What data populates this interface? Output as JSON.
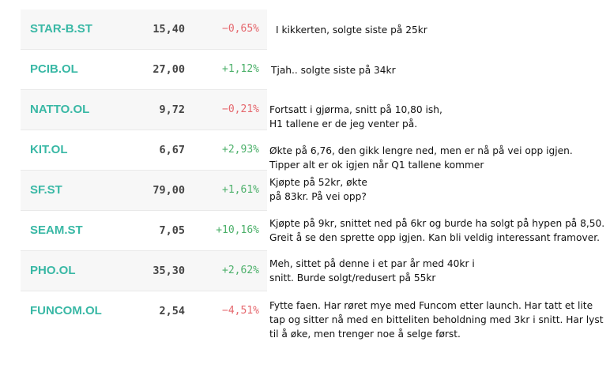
{
  "rows": [
    {
      "ticker": "STAR-B.ST",
      "price": "15,40",
      "change": "−0,65%",
      "direction": "neg",
      "note": [
        "I kikkerten, solgte siste på 25kr"
      ]
    },
    {
      "ticker": "PCIB.OL",
      "price": "27,00",
      "change": "+1,12%",
      "direction": "pos",
      "note": [
        "Tjah.. solgte siste på 34kr"
      ]
    },
    {
      "ticker": "NATTO.OL",
      "price": "9,72",
      "change": "−0,21%",
      "direction": "neg",
      "note": [
        "Fortsatt i gjørma, snitt på 10,80 ish,",
        "H1 tallene er de jeg venter på."
      ]
    },
    {
      "ticker": "KIT.OL",
      "price": "6,67",
      "change": "+2,93%",
      "direction": "pos",
      "note": [
        "Økte på 6,76, den gikk lengre ned, men er nå på vei opp igjen.",
        "Tipper alt er ok igjen når Q1 tallene kommer"
      ]
    },
    {
      "ticker": "SF.ST",
      "price": "79,00",
      "change": "+1,61%",
      "direction": "pos",
      "note": [
        "Kjøpte på 52kr, økte",
        "på 83kr. På vei opp?"
      ]
    },
    {
      "ticker": "SEAM.ST",
      "price": "7,05",
      "change": "+10,16%",
      "direction": "pos",
      "note": [
        "Kjøpte på 9kr, snittet ned på 6kr og burde ha solgt på hypen på 8,50.",
        "Greit å se den sprette opp igjen. Kan bli veldig interessant framover."
      ]
    },
    {
      "ticker": "PHO.OL",
      "price": "35,30",
      "change": "+2,62%",
      "direction": "pos",
      "note": [
        "Meh, sittet på denne i et par år med 40kr i",
        "snitt. Burde solgt/redusert på 55kr"
      ]
    },
    {
      "ticker": "FUNCOM.OL",
      "price": "2,54",
      "change": "−4,51%",
      "direction": "neg",
      "note": [
        "Fytte faen. Har røret mye med Funcom etter launch. Har tatt et lite",
        "tap og sitter nå med en bitteliten beholdning med 3kr i snitt. Har lyst",
        "til å øke, men trenger noe å selge først."
      ]
    }
  ],
  "colors": {
    "ticker": "#39b8a5",
    "negative": "#e5676d",
    "positive": "#4cb06a",
    "row_bg": "#f7f7f7"
  }
}
